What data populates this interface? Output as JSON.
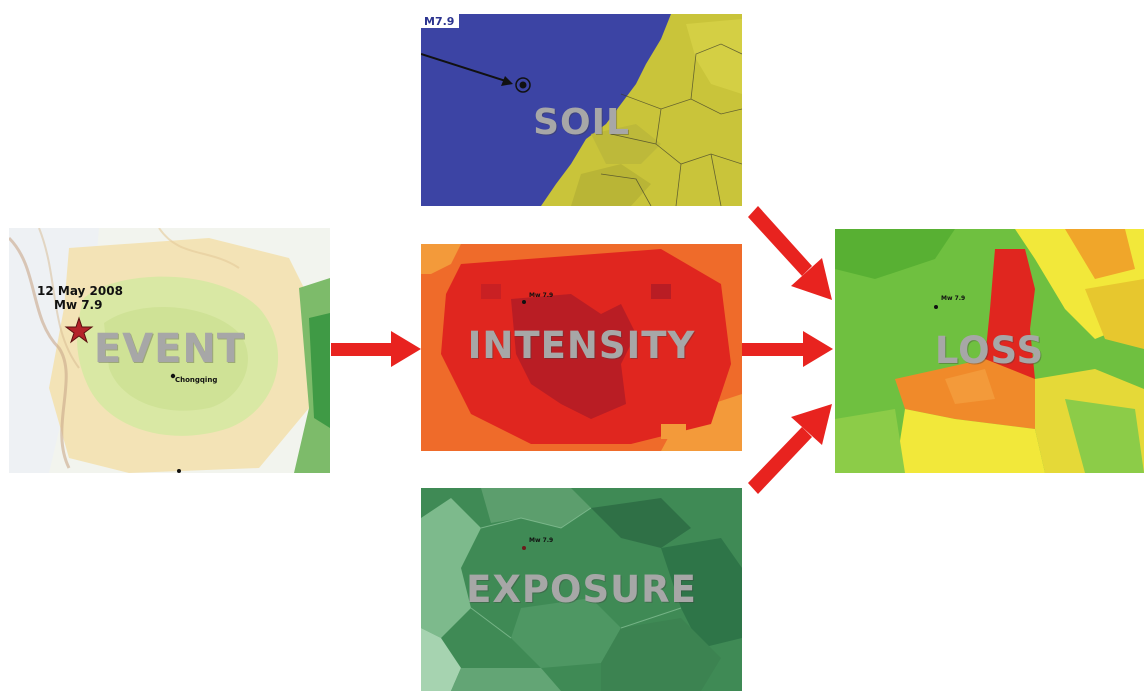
{
  "event": {
    "label": "EVENT",
    "date": "12 May 2008",
    "magnitude": "Mw 7.9",
    "city_chongqing": "Chongqing"
  },
  "soil": {
    "label": "SOIL",
    "magnitude": "M7.9"
  },
  "intensity": {
    "label": "INTENSITY",
    "magnitude": "Mw 7.9"
  },
  "exposure": {
    "label": "EXPOSURE",
    "magnitude": "Mw 7.9"
  },
  "loss": {
    "label": "LOSS",
    "magnitude": "Mw 7.9"
  },
  "colors": {
    "arrow": "#e8231f",
    "soil_blue": "#3c44a4",
    "soil_yellow": "#c9c43a",
    "intensity_red": "#e0261f",
    "intensity_orange": "#ef6b2a",
    "exposure_green": "#3f8a55",
    "loss_green": "#6fc040",
    "loss_yellow": "#f2e83a"
  }
}
